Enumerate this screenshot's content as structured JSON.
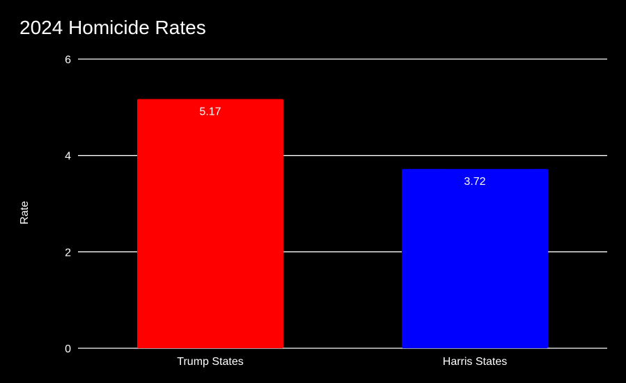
{
  "chart_data": {
    "type": "bar",
    "title": "2024 Homicide Rates",
    "xlabel": "",
    "ylabel": "Rate",
    "categories": [
      "Trump States",
      "Harris States"
    ],
    "values": [
      5.17,
      3.72
    ],
    "data_labels": [
      "5.17",
      "3.72"
    ],
    "colors": [
      "#ff0000",
      "#0000ff"
    ],
    "ylim": [
      0,
      6
    ],
    "yticks": [
      0,
      2,
      4,
      6
    ],
    "grid": true,
    "legend": "none"
  },
  "style": {
    "background": "#000000",
    "text_color": "#ffffff",
    "grid_color": "#ffffff"
  }
}
